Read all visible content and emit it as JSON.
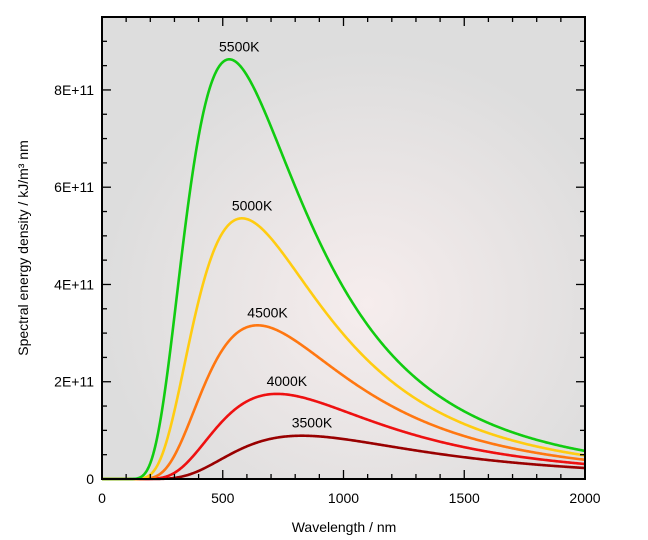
{
  "chart_data": {
    "type": "line",
    "title": "",
    "xlabel": "Wavelength / nm",
    "ylabel": "Spectral energy density / kJ/m³ nm",
    "xlim": [
      0,
      2000
    ],
    "ylim": [
      0,
      950000000000
    ],
    "x_ticks": [
      {
        "value": 0,
        "label": "0"
      },
      {
        "value": 500,
        "label": "500"
      },
      {
        "value": 1000,
        "label": "1000"
      },
      {
        "value": 1500,
        "label": "1500"
      },
      {
        "value": 2000,
        "label": "2000"
      }
    ],
    "y_ticks": [
      {
        "value": 0,
        "label": "0"
      },
      {
        "value": 200000000000,
        "label": "2E+11"
      },
      {
        "value": 400000000000,
        "label": "4E+11"
      },
      {
        "value": 600000000000,
        "label": "6E+11"
      },
      {
        "value": 800000000000,
        "label": "8E+11"
      }
    ],
    "grid": false,
    "plot_background": "#dcdcdc",
    "series": [
      {
        "name": "5500K",
        "temperature": 5500,
        "color": "#11cc11",
        "peak_x": 527,
        "peak_y": 863000000000,
        "points": [
          [
            100,
            0
          ],
          [
            200,
            20000000000
          ],
          [
            300,
            340000000000
          ],
          [
            400,
            740000000000
          ],
          [
            527,
            863000000000
          ],
          [
            600,
            820000000000
          ],
          [
            700,
            690000000000
          ],
          [
            800,
            550000000000
          ],
          [
            1000,
            330000000000
          ],
          [
            1200,
            200000000000
          ],
          [
            1500,
            110000000000
          ],
          [
            2000,
            50000000000
          ]
        ]
      },
      {
        "name": "5000K",
        "temperature": 5000,
        "color": "#ffcc11",
        "peak_x": 580,
        "peak_y": 536000000000,
        "points": [
          [
            100,
            0
          ],
          [
            200,
            7000000000
          ],
          [
            300,
            150000000000
          ],
          [
            400,
            400000000000
          ],
          [
            580,
            536000000000
          ],
          [
            700,
            480000000000
          ],
          [
            800,
            400000000000
          ],
          [
            1000,
            250000000000
          ],
          [
            1200,
            160000000000
          ],
          [
            1500,
            90000000000
          ],
          [
            2000,
            40000000000
          ]
        ]
      },
      {
        "name": "4500K",
        "temperature": 4500,
        "color": "#ff7711",
        "peak_x": 644,
        "peak_y": 316000000000,
        "points": [
          [
            150,
            0
          ],
          [
            200,
            2000000000
          ],
          [
            300,
            50000000000
          ],
          [
            400,
            180000000000
          ],
          [
            500,
            280000000000
          ],
          [
            644,
            316000000000
          ],
          [
            800,
            270000000000
          ],
          [
            1000,
            180000000000
          ],
          [
            1200,
            120000000000
          ],
          [
            1500,
            70000000000
          ],
          [
            2000,
            32000000000
          ]
        ]
      },
      {
        "name": "4000K",
        "temperature": 4000,
        "color": "#ee1111",
        "peak_x": 724,
        "peak_y": 175000000000,
        "points": [
          [
            200,
            0
          ],
          [
            300,
            12000000000
          ],
          [
            400,
            60000000000
          ],
          [
            500,
            120000000000
          ],
          [
            600,
            160000000000
          ],
          [
            724,
            175000000000
          ],
          [
            900,
            150000000000
          ],
          [
            1000,
            130000000000
          ],
          [
            1200,
            90000000000
          ],
          [
            1500,
            55000000000
          ],
          [
            2000,
            25000000000
          ]
        ]
      },
      {
        "name": "3500K",
        "temperature": 3500,
        "color": "#990000",
        "peak_x": 828,
        "peak_y": 89000000000,
        "points": [
          [
            250,
            0
          ],
          [
            300,
            2000000000
          ],
          [
            400,
            15000000000
          ],
          [
            500,
            40000000000
          ],
          [
            600,
            65000000000
          ],
          [
            700,
            82000000000
          ],
          [
            828,
            89000000000
          ],
          [
            1000,
            82000000000
          ],
          [
            1200,
            65000000000
          ],
          [
            1500,
            42000000000
          ],
          [
            2000,
            20000000000
          ]
        ]
      }
    ]
  }
}
